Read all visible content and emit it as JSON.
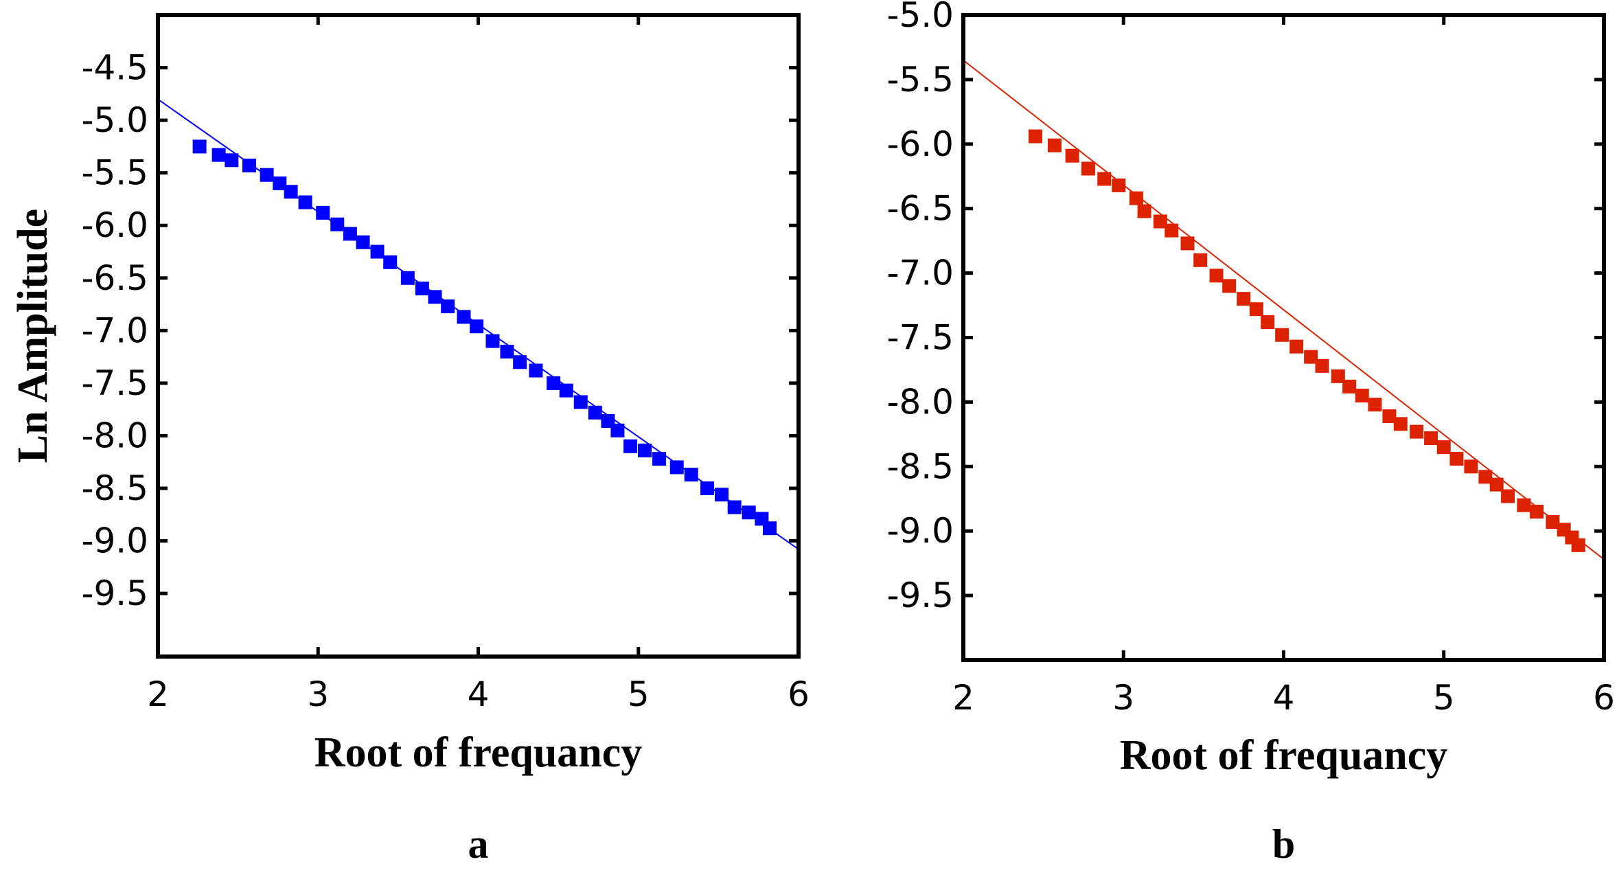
{
  "chart_data": [
    {
      "panel": "a",
      "type": "scatter",
      "xlabel": "Root of frequancy",
      "ylabel": "Ln Amplitude",
      "xlim": [
        2,
        6
      ],
      "ylim": [
        -10.1,
        -4.0
      ],
      "xticks": [
        "2",
        "3",
        "4",
        "5",
        "6"
      ],
      "yticks": [
        "-4.5",
        "-5.0",
        "-5.5",
        "-6.0",
        "-6.5",
        "-7.0",
        "-7.5",
        "-8.0",
        "-8.5",
        "-9.0",
        "-9.5"
      ],
      "grid": false,
      "marker_color": "#0000ff",
      "series": [
        {
          "marker": "square",
          "x": [
            2.26,
            2.38,
            2.46,
            2.57,
            2.68,
            2.76,
            2.83,
            2.92,
            3.03,
            3.12,
            3.2,
            3.28,
            3.37,
            3.45,
            3.56,
            3.65,
            3.73,
            3.81,
            3.91,
            3.99,
            4.09,
            4.18,
            4.26,
            4.36,
            4.47,
            4.55,
            4.64,
            4.73,
            4.81,
            4.87,
            4.95,
            5.04,
            5.13,
            5.24,
            5.33,
            5.43,
            5.52,
            5.6,
            5.69,
            5.77,
            5.82
          ],
          "y": [
            -5.25,
            -5.33,
            -5.38,
            -5.43,
            -5.52,
            -5.6,
            -5.68,
            -5.78,
            -5.88,
            -5.99,
            -6.08,
            -6.16,
            -6.25,
            -6.35,
            -6.5,
            -6.6,
            -6.68,
            -6.77,
            -6.87,
            -6.96,
            -7.1,
            -7.2,
            -7.3,
            -7.38,
            -7.5,
            -7.57,
            -7.68,
            -7.78,
            -7.86,
            -7.95,
            -8.1,
            -8.14,
            -8.22,
            -8.3,
            -8.37,
            -8.5,
            -8.56,
            -8.68,
            -8.73,
            -8.79,
            -8.88
          ]
        },
        {
          "marker": "line",
          "x": [
            2,
            6
          ],
          "y": [
            -4.8,
            -9.08
          ]
        }
      ]
    },
    {
      "panel": "b",
      "type": "scatter",
      "xlabel": "Root of frequancy",
      "ylabel": "",
      "xlim": [
        2,
        6
      ],
      "ylim": [
        -10.0,
        -5.0
      ],
      "xticks": [
        "2",
        "3",
        "4",
        "5",
        "6"
      ],
      "yticks": [
        "-5.0",
        "-5.5",
        "-6.0",
        "-6.5",
        "-7.0",
        "-7.5",
        "-8.0",
        "-8.5",
        "-9.0",
        "-9.5"
      ],
      "grid": false,
      "marker_color": "#dd2200",
      "series": [
        {
          "marker": "square",
          "x": [
            2.45,
            2.57,
            2.68,
            2.78,
            2.88,
            2.97,
            3.08,
            3.13,
            3.23,
            3.3,
            3.4,
            3.48,
            3.58,
            3.66,
            3.75,
            3.83,
            3.9,
            3.99,
            4.08,
            4.17,
            4.24,
            4.34,
            4.41,
            4.49,
            4.57,
            4.66,
            4.73,
            4.83,
            4.92,
            5.0,
            5.08,
            5.17,
            5.26,
            5.33,
            5.4,
            5.5,
            5.58,
            5.68,
            5.75,
            5.8,
            5.84
          ],
          "y": [
            -5.94,
            -6.01,
            -6.09,
            -6.19,
            -6.27,
            -6.32,
            -6.42,
            -6.52,
            -6.6,
            -6.67,
            -6.77,
            -6.9,
            -7.02,
            -7.1,
            -7.2,
            -7.28,
            -7.38,
            -7.48,
            -7.57,
            -7.65,
            -7.72,
            -7.8,
            -7.88,
            -7.95,
            -8.02,
            -8.11,
            -8.17,
            -8.23,
            -8.28,
            -8.35,
            -8.44,
            -8.5,
            -8.58,
            -8.64,
            -8.73,
            -8.8,
            -8.85,
            -8.93,
            -8.99,
            -9.05,
            -9.11
          ]
        },
        {
          "marker": "line",
          "x": [
            2,
            6
          ],
          "y": [
            -5.35,
            -9.22
          ]
        }
      ]
    }
  ]
}
